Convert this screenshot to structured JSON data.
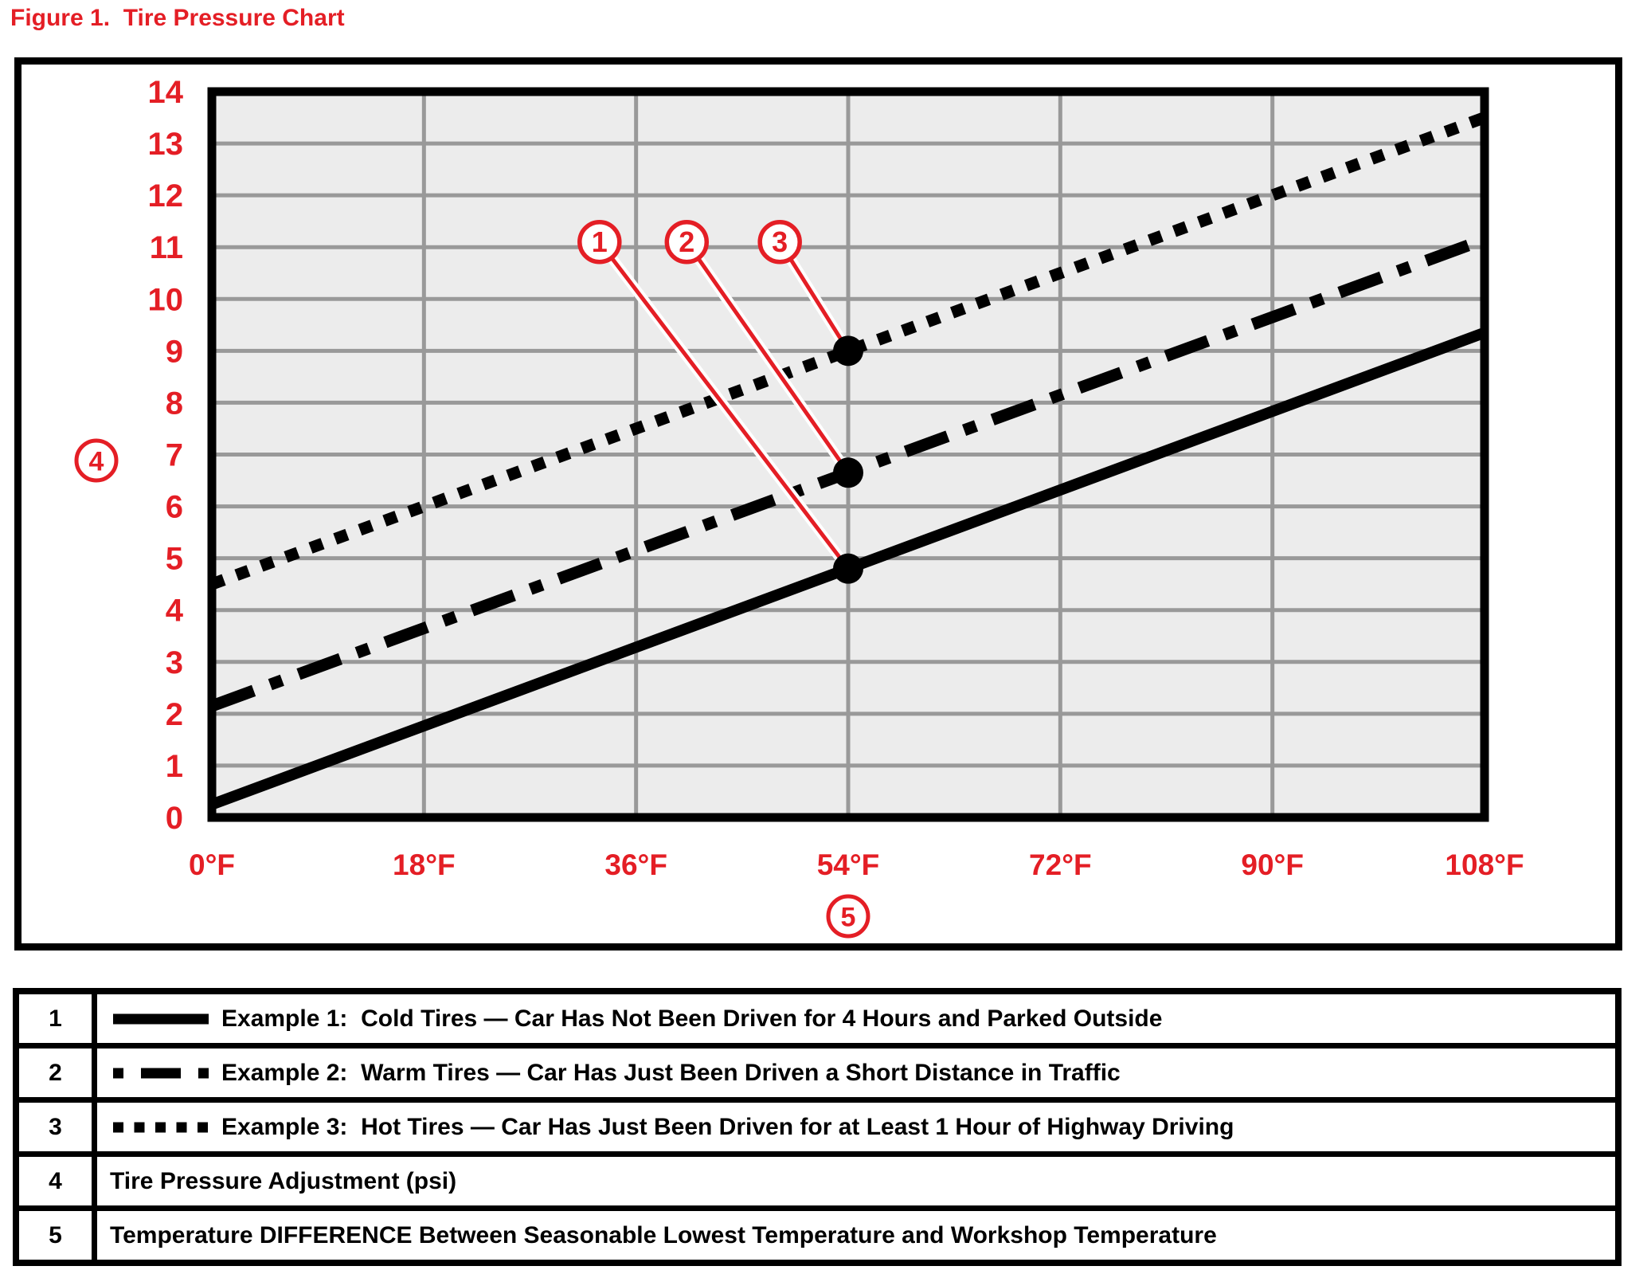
{
  "figure_title": "Figure 1.  Tire Pressure Chart",
  "colors": {
    "accent_red": "#e41e25",
    "plot_background": "#ececec",
    "gridline_gray": "#999999",
    "line_black": "#000000"
  },
  "chart_data": {
    "type": "line",
    "title": "Tire Pressure Chart",
    "xlim": [
      0,
      108
    ],
    "ylim": [
      0,
      14
    ],
    "grid": true,
    "x_ticks": [
      {
        "value": 0,
        "label": "0°F"
      },
      {
        "value": 18,
        "label": "18°F"
      },
      {
        "value": 36,
        "label": "36°F"
      },
      {
        "value": 54,
        "label": "54°F"
      },
      {
        "value": 72,
        "label": "72°F"
      },
      {
        "value": 90,
        "label": "90°F"
      },
      {
        "value": 108,
        "label": "108°F"
      }
    ],
    "y_ticks": [
      0,
      1,
      2,
      3,
      4,
      5,
      6,
      7,
      8,
      9,
      10,
      11,
      12,
      13,
      14
    ],
    "series": [
      {
        "callout_number": "1",
        "name": "Example 1: Cold Tires — Car Has Not Been Driven for 4 Hours and Parked Outside",
        "line_style": "solid",
        "x": [
          0,
          108
        ],
        "y": [
          0.25,
          9.35
        ],
        "marker_point": {
          "x": 54,
          "y": 4.8
        }
      },
      {
        "callout_number": "2",
        "name": "Example 2: Warm Tires — Car Has Just Been Driven a Short Distance in Traffic",
        "line_style": "dash-dot",
        "x": [
          0,
          108
        ],
        "y": [
          2.15,
          11.15
        ],
        "marker_point": {
          "x": 54,
          "y": 6.65
        }
      },
      {
        "callout_number": "3",
        "name": "Example 3: Hot Tires — Car Has Just Been Driven for at Least 1 Hour of Highway Driving",
        "line_style": "dotted",
        "x": [
          0,
          108
        ],
        "y": [
          4.5,
          13.5
        ],
        "marker_point": {
          "x": 54,
          "y": 9.0
        }
      }
    ],
    "callouts": [
      {
        "number": "1",
        "circle_at": {
          "x": 32.9,
          "y": 11.1
        },
        "targets_series": 0
      },
      {
        "number": "2",
        "circle_at": {
          "x": 40.3,
          "y": 11.1
        },
        "targets_series": 1
      },
      {
        "number": "3",
        "circle_at": {
          "x": 48.2,
          "y": 11.1
        },
        "targets_series": 2
      }
    ],
    "y_axis_callout_number": "4",
    "x_axis_callout_number": "5"
  },
  "legend_table": {
    "rows": [
      {
        "number": "1",
        "swatch": "solid",
        "text": "Example 1:  Cold Tires — Car Has Not Been Driven for 4 Hours and Parked Outside"
      },
      {
        "number": "2",
        "swatch": "dash-dot",
        "text": "Example 2:  Warm Tires — Car Has Just Been Driven a Short Distance in Traffic"
      },
      {
        "number": "3",
        "swatch": "dotted",
        "text": "Example 3:  Hot Tires — Car Has Just Been Driven for at Least 1 Hour of Highway Driving"
      },
      {
        "number": "4",
        "swatch": null,
        "text": "Tire Pressure Adjustment (psi)"
      },
      {
        "number": "5",
        "swatch": null,
        "text": "Temperature DIFFERENCE Between Seasonable Lowest Temperature and Workshop Temperature"
      }
    ]
  }
}
